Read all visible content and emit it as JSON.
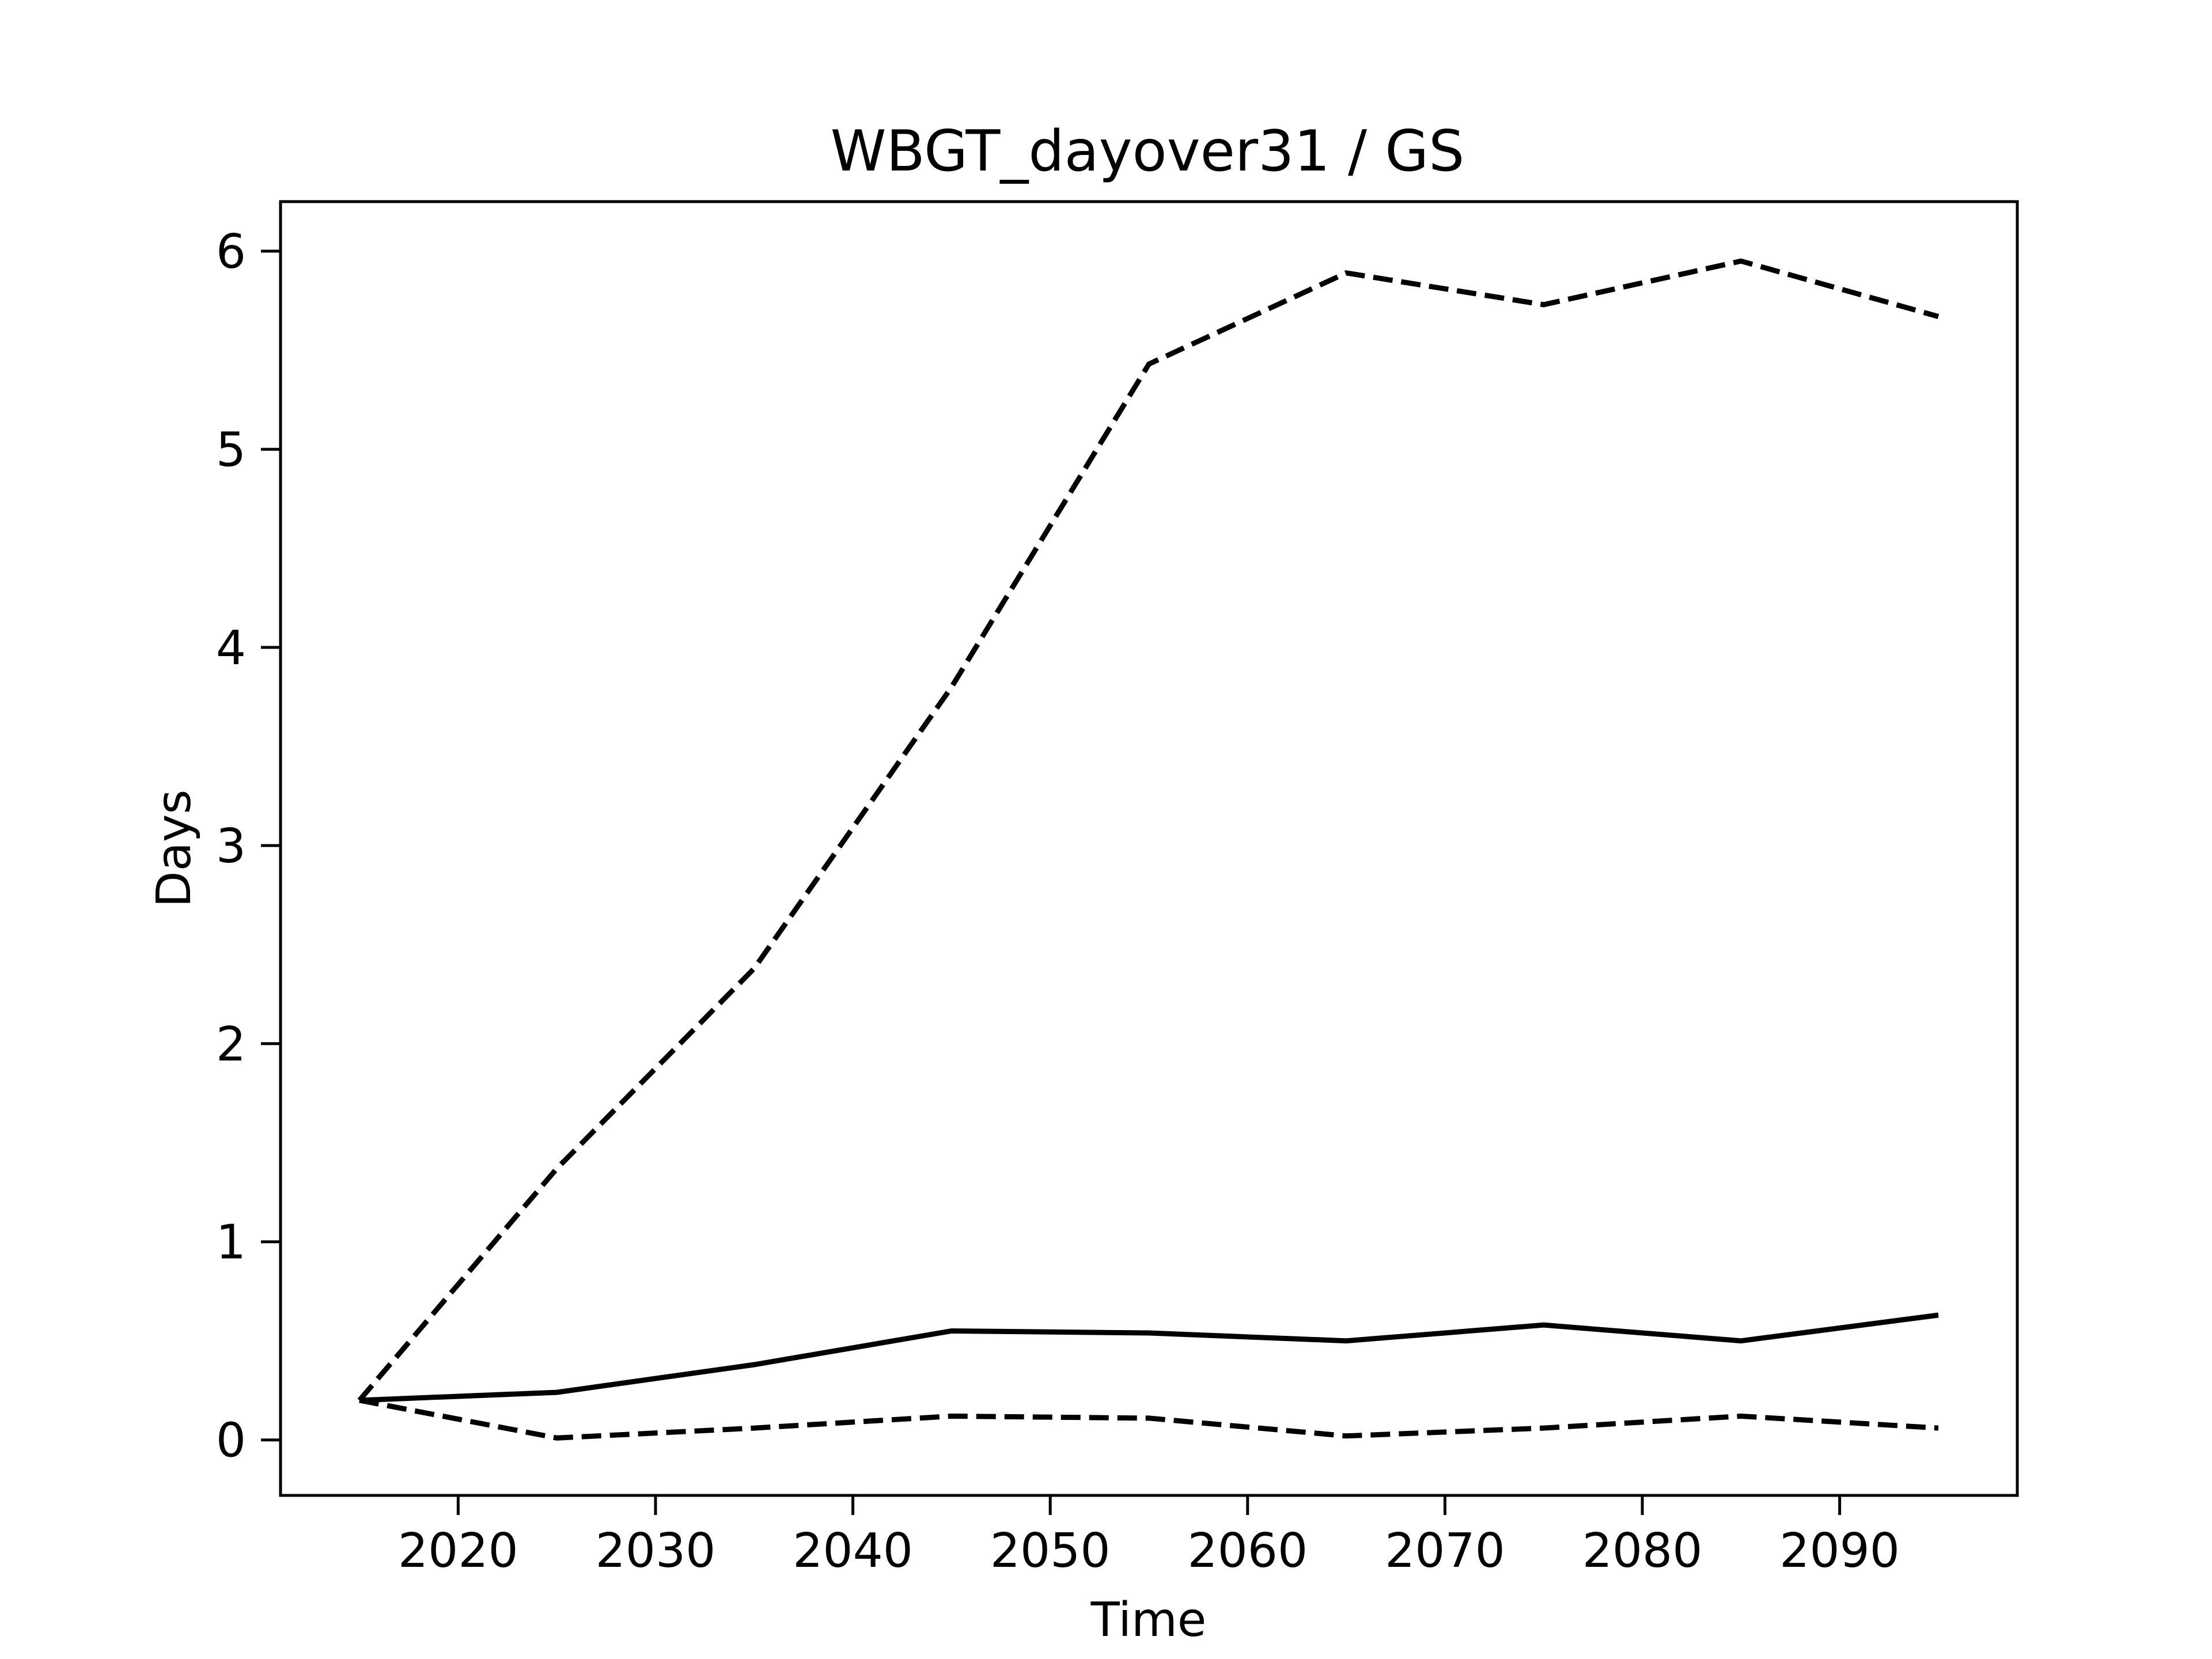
{
  "chart_data": {
    "type": "line",
    "title": "WBGT_dayover31 / GS",
    "xlabel": "Time",
    "ylabel": "Days",
    "xlim": [
      2011,
      2099
    ],
    "ylim": [
      -0.28,
      6.25
    ],
    "x_ticks": [
      2020,
      2030,
      2040,
      2050,
      2060,
      2070,
      2080,
      2090
    ],
    "y_ticks": [
      0,
      1,
      2,
      3,
      4,
      5,
      6
    ],
    "grid": false,
    "legend": "none",
    "x": [
      2015,
      2025,
      2035,
      2045,
      2055,
      2065,
      2075,
      2085,
      2095
    ],
    "series": [
      {
        "style": "dashed",
        "color": "#000000",
        "values": [
          0.2,
          1.37,
          2.38,
          3.8,
          5.43,
          5.89,
          5.73,
          5.95,
          5.67
        ]
      },
      {
        "style": "solid",
        "color": "#000000",
        "values": [
          0.2,
          0.24,
          0.38,
          0.55,
          0.54,
          0.5,
          0.58,
          0.5,
          0.63
        ]
      },
      {
        "style": "dashed",
        "color": "#000000",
        "values": [
          0.2,
          0.01,
          0.06,
          0.12,
          0.11,
          0.02,
          0.06,
          0.12,
          0.06
        ]
      }
    ]
  }
}
